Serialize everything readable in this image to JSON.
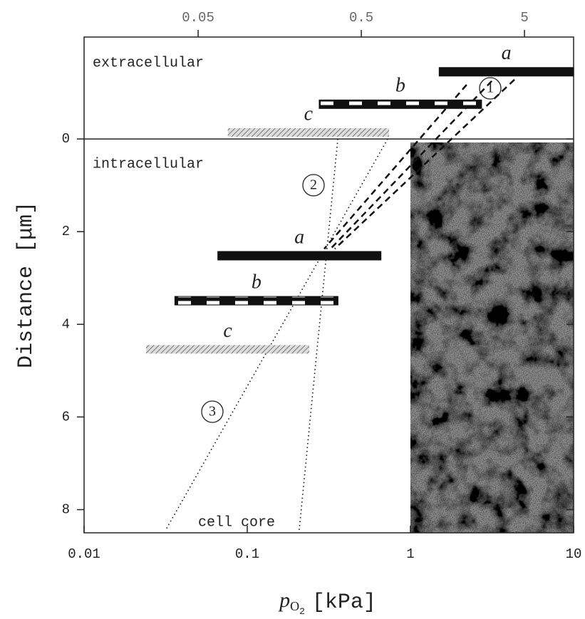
{
  "chart_data": {
    "type": "range-bar",
    "x_label": {
      "symbol": "p",
      "sub": "O",
      "subsub": "2",
      "unit": "[kPa]"
    },
    "y_label": "Distance [μm]",
    "xscale": "log",
    "xlim": [
      0.01,
      10
    ],
    "xticks": [
      0.01,
      0.1,
      1,
      10
    ],
    "x2ticks": [
      0.05,
      0.5,
      5
    ],
    "ylim": [
      -2.2,
      8.5
    ],
    "y_inverted": true,
    "yticks": [
      0,
      2,
      4,
      6,
      8
    ],
    "regions": [
      "extracellular",
      "intracellular",
      "cell core"
    ],
    "annotations": [
      "1",
      "2",
      "3"
    ],
    "series": [
      {
        "name": "a",
        "style": "solid",
        "x": [
          1.5,
          10
        ],
        "y": -1.45
      },
      {
        "name": "b",
        "style": "checkered",
        "x": [
          0.276,
          2.73
        ],
        "y": -0.75
      },
      {
        "name": "c",
        "style": "hatched",
        "x": [
          0.076,
          0.74
        ],
        "y": -0.14
      },
      {
        "name": "a",
        "style": "solid",
        "x": [
          0.066,
          0.66
        ],
        "y": 2.52
      },
      {
        "name": "b",
        "style": "checkered",
        "x": [
          0.036,
          0.36
        ],
        "y": 3.49
      },
      {
        "name": "c",
        "style": "hatched",
        "x": [
          0.024,
          0.24
        ],
        "y": 4.54
      }
    ],
    "lines": [
      {
        "style": "dashed",
        "x": [
          2.21,
          0.296
        ],
        "y": [
          -1.17,
          2.37
        ]
      },
      {
        "style": "dashed",
        "x": [
          3.15,
          0.318
        ],
        "y": [
          -1.25,
          2.4
        ]
      },
      {
        "style": "dashed",
        "x": [
          4.34,
          0.344
        ],
        "y": [
          -1.28,
          2.37
        ]
      },
      {
        "style": "dotted",
        "x": [
          0.359,
          0.208
        ],
        "y": [
          0,
          8.45
        ]
      },
      {
        "style": "dotted",
        "x": [
          0.725,
          0.0315
        ],
        "y": [
          0,
          8.45
        ]
      }
    ]
  }
}
